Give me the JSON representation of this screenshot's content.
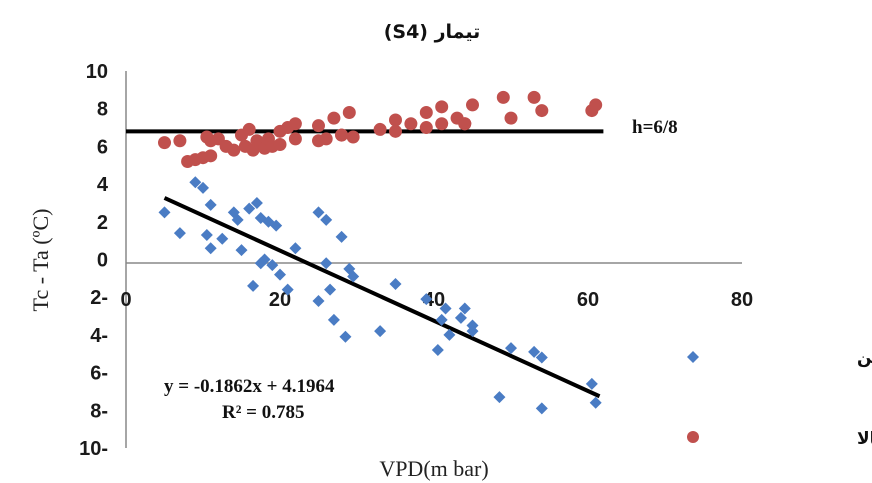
{
  "chart_data": {
    "type": "scatter",
    "title": "تیمار (S4)",
    "xlabel": "VPD(m bar)",
    "ylabel": "Tc - Ta (ºC)",
    "xlim": [
      0,
      80
    ],
    "ylim": [
      -10,
      10
    ],
    "x_ticks": [
      0,
      20,
      40,
      60,
      80
    ],
    "x_tick_labels": [
      "0",
      "20",
      "40",
      "60",
      "80"
    ],
    "y_ticks": [
      10,
      8,
      6,
      4,
      2,
      0,
      -2,
      -4,
      -6,
      -8,
      -10
    ],
    "y_tick_labels": [
      "10",
      "8",
      "6",
      "4",
      "2",
      "0",
      "2-",
      "4-",
      "6-",
      "8-",
      "10-"
    ],
    "grid": false,
    "legend_position": "right",
    "series": [
      {
        "name": "خط مبنای پایین",
        "marker": "diamond",
        "color": "#4a7cc4",
        "points": [
          [
            5,
            2.5
          ],
          [
            7,
            1.4
          ],
          [
            9,
            4.1
          ],
          [
            10,
            3.8
          ],
          [
            10.5,
            1.3
          ],
          [
            11,
            2.9
          ],
          [
            11,
            0.6
          ],
          [
            12.5,
            1.1
          ],
          [
            14,
            2.5
          ],
          [
            14.5,
            2.1
          ],
          [
            15,
            0.5
          ],
          [
            16,
            2.7
          ],
          [
            16.5,
            -1.4
          ],
          [
            17,
            3.0
          ],
          [
            17.5,
            2.2
          ],
          [
            17.5,
            -0.2
          ],
          [
            18,
            0.0
          ],
          [
            18.5,
            2.0
          ],
          [
            19,
            -0.3
          ],
          [
            19.5,
            1.8
          ],
          [
            20,
            -0.8
          ],
          [
            21,
            -1.6
          ],
          [
            22,
            0.6
          ],
          [
            25,
            2.5
          ],
          [
            25,
            -2.2
          ],
          [
            26,
            2.1
          ],
          [
            26,
            -0.2
          ],
          [
            26.5,
            -1.6
          ],
          [
            27,
            -3.2
          ],
          [
            28,
            1.2
          ],
          [
            28.5,
            -4.1
          ],
          [
            29,
            -0.5
          ],
          [
            29.5,
            -0.9
          ],
          [
            33,
            -3.8
          ],
          [
            35,
            -1.3
          ],
          [
            39,
            -2.1
          ],
          [
            40.5,
            -4.8
          ],
          [
            41,
            -3.2
          ],
          [
            41.5,
            -2.6
          ],
          [
            42,
            -4.0
          ],
          [
            43.5,
            -3.1
          ],
          [
            44,
            -2.6
          ],
          [
            45,
            -3.5
          ],
          [
            45,
            -3.8
          ],
          [
            48.5,
            -7.3
          ],
          [
            50,
            -4.7
          ],
          [
            53,
            -4.9
          ],
          [
            54,
            -5.2
          ],
          [
            54,
            -7.9
          ],
          [
            60.5,
            -6.6
          ],
          [
            61,
            -7.6
          ]
        ]
      },
      {
        "name": "خط مبنای بالا",
        "marker": "circle",
        "color": "#c0504d",
        "points": [
          [
            5,
            6.2
          ],
          [
            7,
            6.3
          ],
          [
            8,
            5.2
          ],
          [
            9,
            5.3
          ],
          [
            10,
            5.4
          ],
          [
            10.5,
            6.5
          ],
          [
            11,
            5.5
          ],
          [
            11,
            6.3
          ],
          [
            12,
            6.4
          ],
          [
            13,
            6.0
          ],
          [
            14,
            5.8
          ],
          [
            15,
            6.6
          ],
          [
            15.5,
            6.0
          ],
          [
            16,
            6.9
          ],
          [
            16.5,
            5.8
          ],
          [
            17,
            6.3
          ],
          [
            17.5,
            6.1
          ],
          [
            18,
            5.9
          ],
          [
            18.5,
            6.4
          ],
          [
            19,
            6.0
          ],
          [
            20,
            6.1
          ],
          [
            20,
            6.8
          ],
          [
            21,
            7.0
          ],
          [
            22,
            7.2
          ],
          [
            22,
            6.4
          ],
          [
            25,
            6.3
          ],
          [
            25,
            7.1
          ],
          [
            26,
            6.4
          ],
          [
            27,
            7.5
          ],
          [
            28,
            6.6
          ],
          [
            28,
            6.6
          ],
          [
            29,
            7.8
          ],
          [
            29.5,
            6.5
          ],
          [
            33,
            6.9
          ],
          [
            35,
            7.4
          ],
          [
            35,
            6.8
          ],
          [
            37,
            7.2
          ],
          [
            39,
            7.8
          ],
          [
            39,
            7.0
          ],
          [
            41,
            8.1
          ],
          [
            41,
            7.2
          ],
          [
            43,
            7.5
          ],
          [
            44,
            7.2
          ],
          [
            44,
            7.2
          ],
          [
            45,
            8.2
          ],
          [
            49,
            8.6
          ],
          [
            50,
            7.5
          ],
          [
            53,
            8.6
          ],
          [
            54,
            7.9
          ],
          [
            60.5,
            7.9
          ],
          [
            61,
            8.2
          ]
        ]
      }
    ],
    "lines": [
      {
        "label": "h=6/8",
        "type": "horizontal",
        "y": 6.8,
        "x_range": [
          0,
          62
        ]
      },
      {
        "type": "trendline",
        "slope": -0.1862,
        "intercept": 4.1964,
        "x_range": [
          5,
          61.5
        ]
      }
    ],
    "annotations": {
      "equation": "y = -0.1862x + 4.1964",
      "r_squared": "R² = 0.785",
      "h_label": "h=6/8"
    }
  }
}
